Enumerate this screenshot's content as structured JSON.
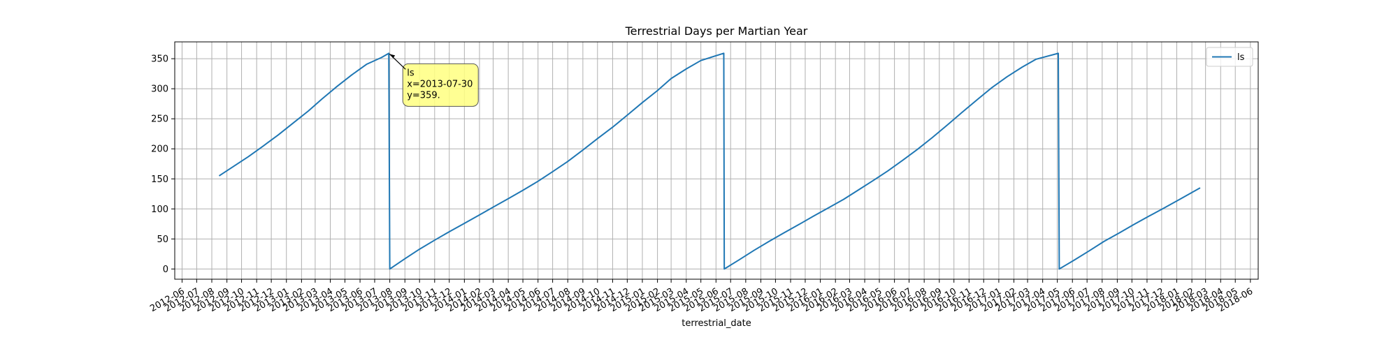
{
  "chart_data": {
    "type": "line",
    "title": "Terrestrial Days per Martian Year",
    "xlabel": "terrestrial_date",
    "ylabel": "",
    "x_axis_type": "date",
    "xlim": [
      "2012-05-17",
      "2018-06-17"
    ],
    "ylim": [
      -17,
      378
    ],
    "y_ticks": [
      0,
      50,
      100,
      150,
      200,
      250,
      300,
      350
    ],
    "x_tick_labels": [
      "2012-06",
      "2012-07",
      "2012-08",
      "2012-09",
      "2012-10",
      "2012-11",
      "2012-12",
      "2013-01",
      "2013-02",
      "2013-03",
      "2013-04",
      "2013-05",
      "2013-06",
      "2013-07",
      "2013-08",
      "2013-09",
      "2013-10",
      "2013-11",
      "2013-12",
      "2014-01",
      "2014-02",
      "2014-03",
      "2014-04",
      "2014-05",
      "2014-06",
      "2014-07",
      "2014-08",
      "2014-09",
      "2014-10",
      "2014-11",
      "2014-12",
      "2015-01",
      "2015-02",
      "2015-03",
      "2015-04",
      "2015-05",
      "2015-06",
      "2015-07",
      "2015-08",
      "2015-09",
      "2015-10",
      "2015-11",
      "2015-12",
      "2016-01",
      "2016-02",
      "2016-03",
      "2016-04",
      "2016-05",
      "2016-06",
      "2016-07",
      "2016-08",
      "2016-09",
      "2016-10",
      "2016-11",
      "2016-12",
      "2017-01",
      "2017-02",
      "2017-03",
      "2017-04",
      "2017-05",
      "2017-06",
      "2017-07",
      "2017-08",
      "2017-09",
      "2017-10",
      "2017-11",
      "2017-12",
      "2018-01",
      "2018-02",
      "2018-03",
      "2018-04",
      "2018-05",
      "2018-06"
    ],
    "grid": true,
    "legend_position": "top-right",
    "series": [
      {
        "name": "ls",
        "color": "#1f77b4",
        "points": [
          [
            "2012-08-16",
            155
          ],
          [
            "2012-09-15",
            171
          ],
          [
            "2012-10-15",
            187
          ],
          [
            "2012-11-15",
            205
          ],
          [
            "2012-12-15",
            223
          ],
          [
            "2013-01-15",
            243
          ],
          [
            "2013-02-15",
            263
          ],
          [
            "2013-03-15",
            283
          ],
          [
            "2013-04-15",
            304
          ],
          [
            "2013-05-15",
            323
          ],
          [
            "2013-06-15",
            341
          ],
          [
            "2013-07-15",
            352
          ],
          [
            "2013-07-30",
            359
          ],
          [
            "2013-08-01",
            0
          ],
          [
            "2013-09-01",
            17
          ],
          [
            "2013-10-01",
            33
          ],
          [
            "2013-11-01",
            48
          ],
          [
            "2013-12-01",
            62
          ],
          [
            "2014-01-01",
            76
          ],
          [
            "2014-02-01",
            90
          ],
          [
            "2014-03-01",
            103
          ],
          [
            "2014-04-01",
            117
          ],
          [
            "2014-05-01",
            131
          ],
          [
            "2014-06-01",
            146
          ],
          [
            "2014-07-01",
            162
          ],
          [
            "2014-08-01",
            179
          ],
          [
            "2014-09-01",
            198
          ],
          [
            "2014-10-01",
            217
          ],
          [
            "2014-11-01",
            236
          ],
          [
            "2014-12-01",
            256
          ],
          [
            "2015-01-01",
            277
          ],
          [
            "2015-02-01",
            297
          ],
          [
            "2015-03-01",
            317
          ],
          [
            "2015-04-01",
            333
          ],
          [
            "2015-05-01",
            347
          ],
          [
            "2015-06-17",
            359
          ],
          [
            "2015-06-18",
            0
          ],
          [
            "2015-07-18",
            15
          ],
          [
            "2015-08-18",
            31
          ],
          [
            "2015-09-18",
            46
          ],
          [
            "2015-10-18",
            60
          ],
          [
            "2015-11-18",
            74
          ],
          [
            "2015-12-18",
            88
          ],
          [
            "2016-01-18",
            102
          ],
          [
            "2016-02-18",
            116
          ],
          [
            "2016-03-18",
            131
          ],
          [
            "2016-04-18",
            147
          ],
          [
            "2016-05-18",
            163
          ],
          [
            "2016-06-18",
            181
          ],
          [
            "2016-07-18",
            199
          ],
          [
            "2016-08-18",
            219
          ],
          [
            "2016-09-18",
            240
          ],
          [
            "2016-10-18",
            261
          ],
          [
            "2016-11-18",
            282
          ],
          [
            "2016-12-18",
            302
          ],
          [
            "2017-01-18",
            320
          ],
          [
            "2017-02-18",
            336
          ],
          [
            "2017-03-18",
            349
          ],
          [
            "2017-05-03",
            359
          ],
          [
            "2017-05-05",
            0
          ],
          [
            "2017-06-05",
            15
          ],
          [
            "2017-07-05",
            30
          ],
          [
            "2017-08-05",
            46
          ],
          [
            "2017-09-05",
            60
          ],
          [
            "2017-10-05",
            74
          ],
          [
            "2017-11-05",
            88
          ],
          [
            "2017-12-05",
            101
          ],
          [
            "2018-01-05",
            115
          ],
          [
            "2018-02-18",
            135
          ]
        ]
      }
    ],
    "annotation": {
      "x": "2013-07-30",
      "y": 359,
      "lines": [
        "ls",
        "x=2013-07-30",
        "y=359."
      ],
      "color": "#ffff80"
    }
  }
}
